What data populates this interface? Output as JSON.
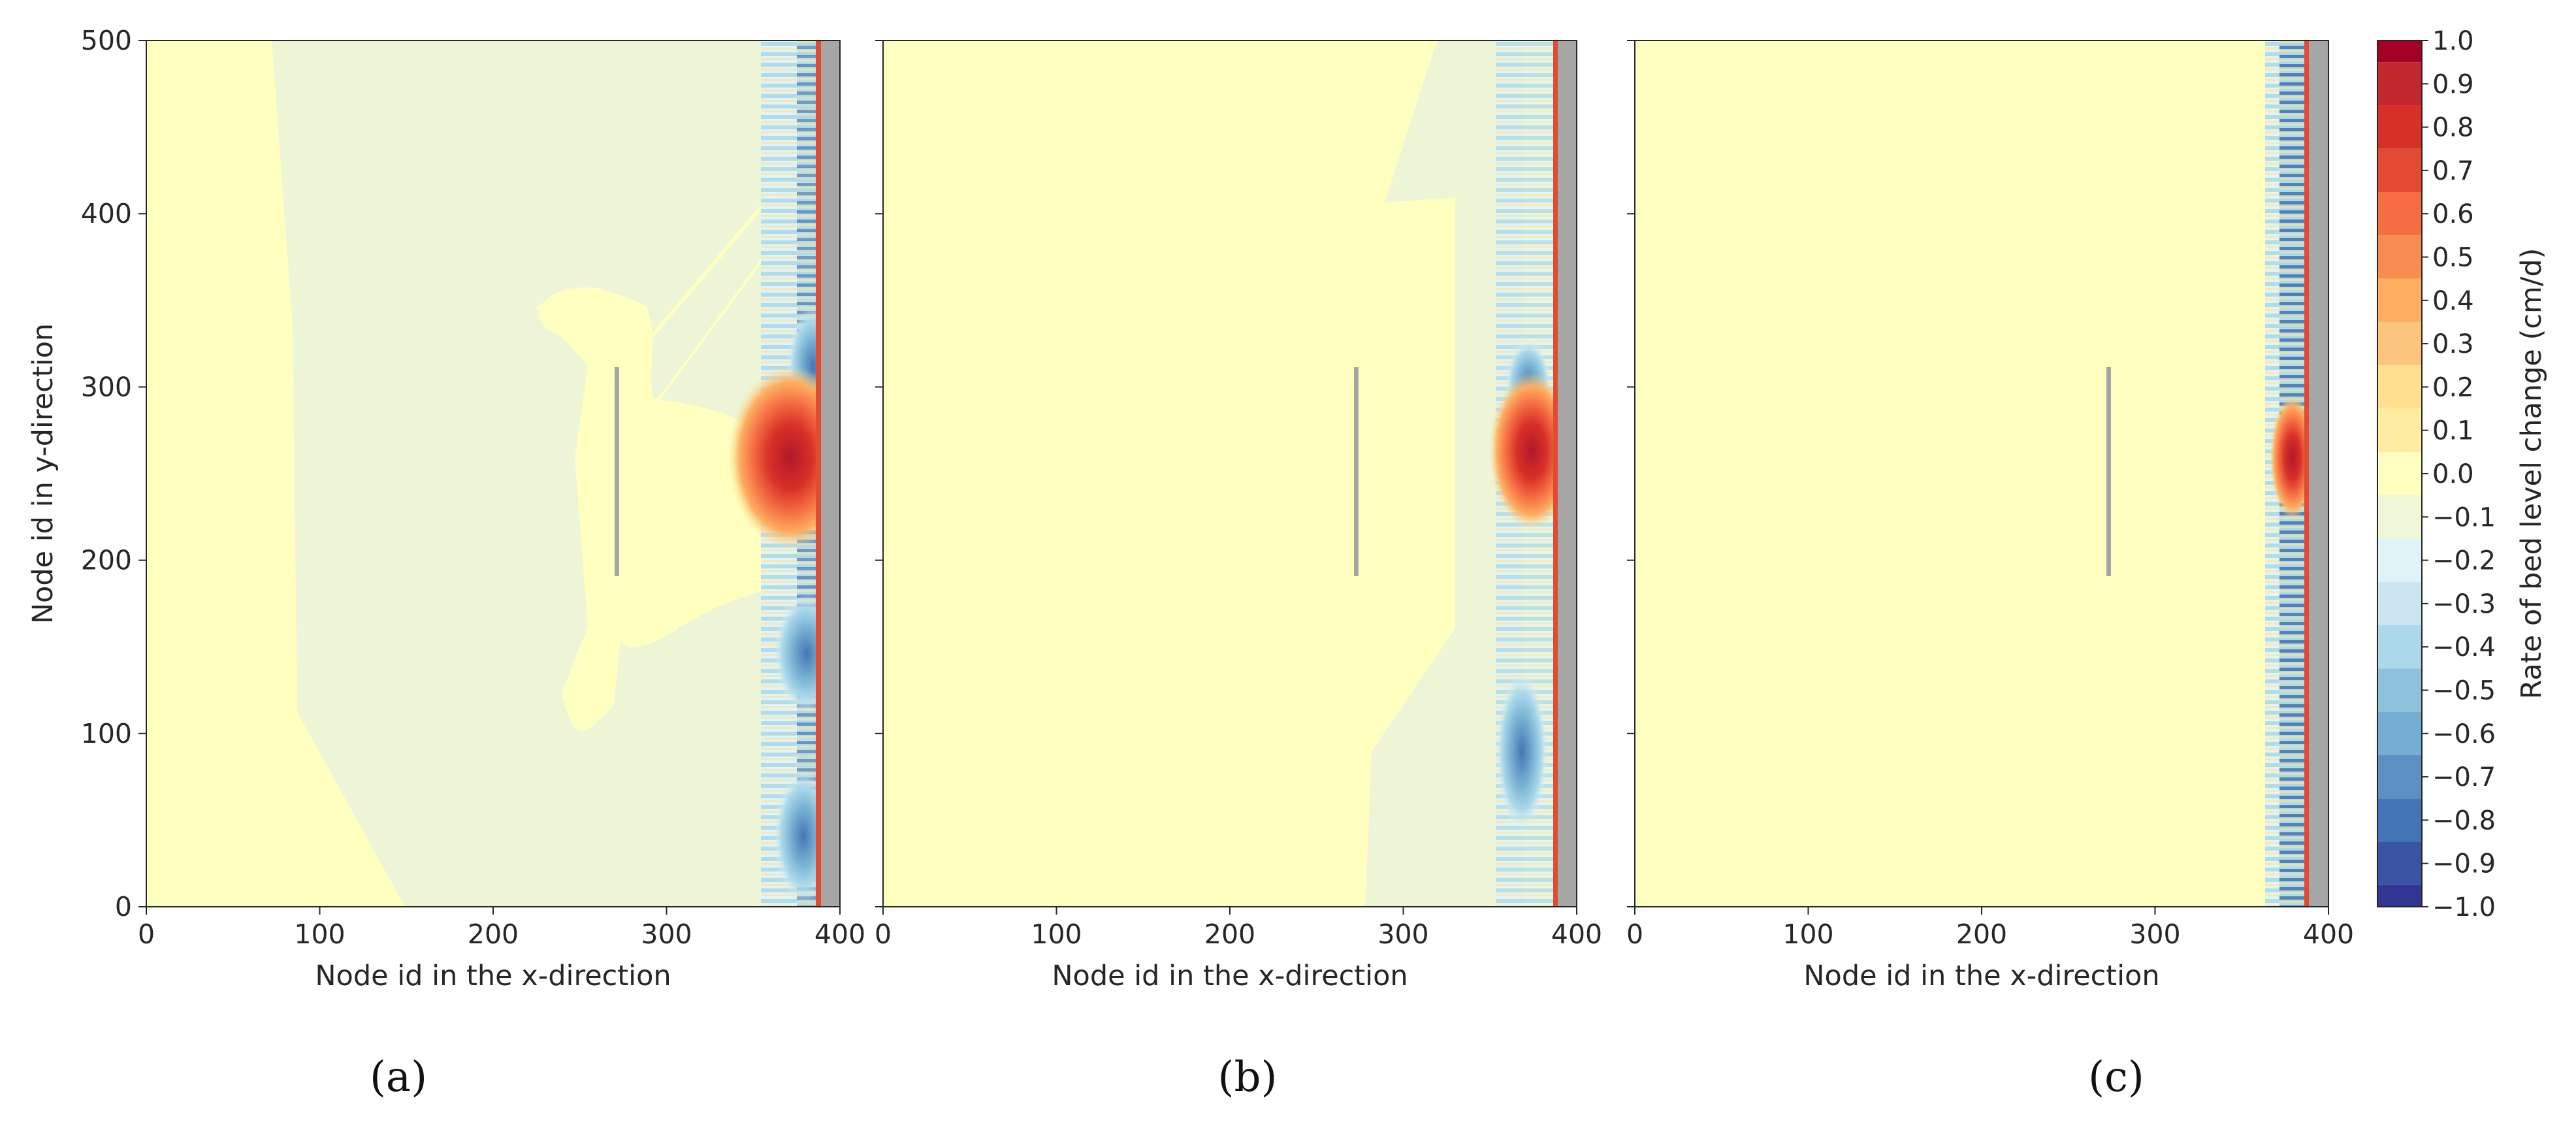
{
  "chart_data": [
    {
      "type": "heatmap",
      "panel_label": "(a)",
      "xlabel": "Node id in the x-direction",
      "ylabel": "Node id in y-direction",
      "xlim": [
        0,
        400
      ],
      "ylim": [
        0,
        500
      ],
      "xticks": [
        0,
        100,
        200,
        300,
        400
      ],
      "yticks": [
        0,
        100,
        200,
        300,
        400,
        500
      ],
      "structure_line": {
        "x": 272,
        "y_from": 192,
        "y_to": 312
      },
      "regions": [
        {
          "name": "offshore-zero-band",
          "value": 0.05,
          "x_at_y0": 150,
          "x_at_y500": 72
        },
        {
          "name": "slightly-negative-field",
          "value": -0.03,
          "x_from": 75,
          "x_to": 370
        },
        {
          "name": "accretion-behind-structure",
          "value": 0.75,
          "x_center": 383,
          "y_center": 262
        },
        {
          "name": "erosion-north",
          "value": -0.4,
          "x_center": 378,
          "y_center": 310
        },
        {
          "name": "nearshore-erosion-bands",
          "value": -0.3,
          "x_from": 355,
          "x_to": 390
        },
        {
          "name": "shoreline-edge",
          "value": 0.9,
          "x_from": 388,
          "x_to": 391
        }
      ]
    },
    {
      "type": "heatmap",
      "panel_label": "(b)",
      "xlabel": "Node id in the x-direction",
      "ylabel": "",
      "xlim": [
        0,
        400
      ],
      "ylim": [
        0,
        500
      ],
      "xticks": [
        0,
        100,
        200,
        300,
        400
      ],
      "structure_line": {
        "x": 272,
        "y_from": 192,
        "y_to": 312
      },
      "regions": [
        {
          "name": "zero-field",
          "value": 0.05,
          "x_from": 0,
          "x_to": 330
        },
        {
          "name": "slightly-negative-band",
          "value": -0.03,
          "x_from": 330,
          "x_to": 358
        },
        {
          "name": "accretion-behind-structure",
          "value": 0.7,
          "x_center": 382,
          "y_center": 262
        },
        {
          "name": "nearshore-erosion-bands",
          "value": -0.25,
          "x_from": 358,
          "x_to": 392
        },
        {
          "name": "shoreline-edge",
          "value": 0.9,
          "x_from": 390,
          "x_to": 392
        }
      ]
    },
    {
      "type": "heatmap",
      "panel_label": "(c)",
      "xlabel": "Node id in the x-direction",
      "ylabel": "",
      "xlim": [
        0,
        400
      ],
      "ylim": [
        0,
        500
      ],
      "xticks": [
        0,
        100,
        200,
        300,
        400
      ],
      "structure_line": {
        "x": 272,
        "y_from": 192,
        "y_to": 312
      },
      "regions": [
        {
          "name": "zero-field",
          "value": 0.05,
          "x_from": 0,
          "x_to": 365
        },
        {
          "name": "accretion-behind-structure",
          "value": 0.85,
          "x_center": 383,
          "y_center": 265
        },
        {
          "name": "nearshore-erosion-bands",
          "value": -0.6,
          "x_from": 365,
          "x_to": 388
        },
        {
          "name": "shoreline-edge",
          "value": 0.9,
          "x_from": 388,
          "x_to": 390
        }
      ]
    }
  ],
  "colorbar": {
    "label": "Rate of bed level change (cm/d)",
    "tick_labels": [
      "1.0",
      "0.9",
      "0.8",
      "0.7",
      "0.6",
      "0.5",
      "0.4",
      "0.3",
      "0.2",
      "0.1",
      "0.0",
      "−0.1",
      "−0.2",
      "−0.3",
      "−0.4",
      "−0.5",
      "−0.6",
      "−0.7",
      "−0.8",
      "−0.9",
      "−1.0"
    ],
    "range": [
      -1.0,
      1.0
    ],
    "colors_top_to_bottom": [
      "#a50026",
      "#c1272d",
      "#d73027",
      "#e34a33",
      "#f46d43",
      "#f88d52",
      "#fdae61",
      "#fdc47d",
      "#fee090",
      "#feeda0",
      "#ffffbf",
      "#eef7d8",
      "#e0f3f8",
      "#cbe6f0",
      "#abd9e9",
      "#8ec1dc",
      "#74add1",
      "#5c8fc3",
      "#4575b4",
      "#3a54a4",
      "#313695"
    ]
  },
  "colors": {
    "zero": "#ffffbf",
    "slightly_negative": "#eef5d6",
    "structure": "#a6a6a6",
    "land": "#a6a6a6",
    "axis": "#262626"
  }
}
